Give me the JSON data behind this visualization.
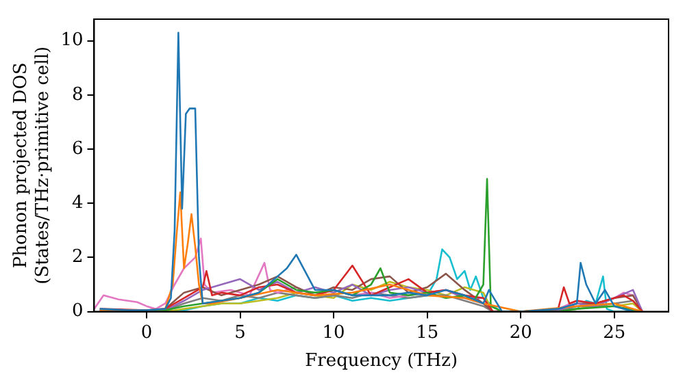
{
  "chart_data": {
    "type": "line",
    "xlabel": "Frequency (THz)",
    "ylabel": "Phonon projected DOS\n(States/THz·primitive cell)",
    "xlim": [
      -2.8,
      27.9
    ],
    "ylim": [
      0,
      10.8
    ],
    "xticks": [
      0,
      5,
      10,
      15,
      20,
      25
    ],
    "yticks": [
      0,
      2,
      4,
      6,
      8,
      10
    ],
    "legend": false,
    "marker": "none",
    "line_style": "solid",
    "series": [
      {
        "color": "#1f77b4",
        "x": [
          -2.5,
          -1,
          0,
          1,
          1.3,
          1.5,
          1.7,
          1.9,
          2.1,
          2.3,
          2.6,
          2.8,
          3.0,
          4,
          5,
          6,
          7,
          7.5,
          8,
          9,
          10,
          11,
          12,
          13,
          14,
          15,
          16,
          17,
          18,
          18.3,
          19,
          20,
          22,
          23,
          23.2,
          23.5,
          24,
          24.5,
          25,
          26
        ],
        "values": [
          0.1,
          0.05,
          0.05,
          0.1,
          0.5,
          3,
          10.3,
          3.8,
          7.3,
          7.5,
          7.5,
          2,
          0.3,
          0.4,
          0.5,
          0.7,
          1.3,
          1.6,
          2.1,
          0.8,
          0.8,
          0.6,
          0.6,
          0.6,
          0.7,
          0.6,
          0.8,
          0.6,
          0.3,
          0.8,
          0,
          0,
          0.1,
          0.3,
          1.8,
          1.0,
          0.3,
          0.8,
          0.2,
          0
        ]
      },
      {
        "color": "#ff7f0e",
        "x": [
          -2.5,
          0,
          1,
          1.4,
          1.6,
          1.8,
          2.0,
          2.2,
          2.4,
          2.6,
          2.8,
          3.0,
          3.5,
          5,
          7,
          9,
          11,
          13,
          15,
          17,
          18,
          20,
          23,
          25,
          26.5
        ],
        "values": [
          0.05,
          0.05,
          0.1,
          1.0,
          2.8,
          4.4,
          1.6,
          2.5,
          3.6,
          2.4,
          1.0,
          0.3,
          0.3,
          0.5,
          0.8,
          0.6,
          0.7,
          1.0,
          0.6,
          0.5,
          0.3,
          0,
          0.2,
          0.3,
          0
        ]
      },
      {
        "color": "#2ca02c",
        "x": [
          -2.5,
          0,
          1,
          2,
          3,
          4,
          5,
          6,
          7,
          8,
          9,
          10,
          11,
          12,
          12.5,
          13,
          14,
          15,
          16,
          17,
          17.5,
          18,
          18.2,
          18.4,
          19,
          22,
          23,
          25,
          26.5
        ],
        "values": [
          0,
          0,
          0.05,
          0.2,
          0.3,
          0.4,
          0.5,
          0.7,
          1.2,
          0.8,
          0.7,
          0.8,
          0.6,
          1.0,
          1.6,
          0.7,
          0.6,
          0.7,
          0.5,
          0.6,
          0.4,
          1.0,
          4.9,
          0.2,
          0,
          0,
          0.1,
          0.2,
          0
        ]
      },
      {
        "color": "#d62728",
        "x": [
          -2.5,
          0,
          1,
          2,
          2.5,
          3,
          3.2,
          3.5,
          4,
          5,
          6,
          7,
          8,
          9,
          10,
          11,
          12,
          13,
          14,
          15,
          16,
          17,
          18,
          18.5,
          20,
          22,
          22.3,
          22.6,
          23,
          24,
          25,
          25.5,
          26,
          26.5
        ],
        "values": [
          0.1,
          0.05,
          0.1,
          0.5,
          0.7,
          0.9,
          1.5,
          0.6,
          0.7,
          0.6,
          0.9,
          1.0,
          0.7,
          0.6,
          0.8,
          1.7,
          0.6,
          0.9,
          1.2,
          0.7,
          0.8,
          0.6,
          0.5,
          0,
          0,
          0.1,
          0.9,
          0.3,
          0.4,
          0.3,
          0.5,
          0.6,
          0.4,
          0
        ]
      },
      {
        "color": "#9467bd",
        "x": [
          -2.5,
          0,
          1,
          2,
          3,
          4,
          5,
          6,
          7,
          8,
          9,
          10,
          11,
          12,
          13,
          14,
          15,
          16,
          17,
          18,
          18.5,
          20,
          22,
          23,
          24,
          25,
          26,
          26.5
        ],
        "values": [
          0.05,
          0,
          0.05,
          0.4,
          0.8,
          1.0,
          1.2,
          0.8,
          1.1,
          0.7,
          0.9,
          0.7,
          1.0,
          0.6,
          0.8,
          0.9,
          0.7,
          0.8,
          0.5,
          0.5,
          0,
          0,
          0.05,
          0.3,
          0.2,
          0.5,
          0.8,
          0
        ]
      },
      {
        "color": "#8c564b",
        "x": [
          -2.5,
          0,
          1,
          2,
          3,
          4,
          5,
          6,
          7,
          8,
          9,
          10,
          11,
          12,
          13,
          14,
          15,
          16,
          17,
          18,
          18.5,
          20,
          22,
          23,
          24,
          25,
          26,
          26.5
        ],
        "values": [
          0.05,
          0,
          0.1,
          0.7,
          0.9,
          0.6,
          0.8,
          1.0,
          1.3,
          0.9,
          0.6,
          0.9,
          0.8,
          1.2,
          1.3,
          0.7,
          0.9,
          1.4,
          0.8,
          0.3,
          0,
          0,
          0.05,
          0.3,
          0.3,
          0.5,
          0.6,
          0
        ]
      },
      {
        "color": "#e377c2",
        "x": [
          -2.8,
          -2.3,
          -1.5,
          -0.5,
          0,
          0.5,
          1,
          1.5,
          2,
          2.6,
          2.9,
          3.1,
          3.5,
          4.5,
          5.5,
          6.3,
          6.6,
          7,
          8,
          9,
          10,
          11,
          12,
          13,
          14,
          15,
          16,
          17,
          18,
          18.5,
          20,
          22,
          23,
          24,
          25,
          25.5,
          26,
          26.5
        ],
        "values": [
          0.1,
          0.6,
          0.45,
          0.35,
          0.2,
          0.1,
          0.3,
          1.0,
          1.6,
          2.0,
          2.7,
          1.0,
          0.7,
          0.8,
          0.6,
          1.8,
          0.8,
          0.7,
          0.9,
          0.6,
          0.8,
          0.6,
          0.7,
          0.5,
          0.6,
          0.7,
          0.8,
          0.5,
          0.3,
          0,
          0,
          0.1,
          0.4,
          0.3,
          0.5,
          0.7,
          0.6,
          0
        ]
      },
      {
        "color": "#7f7f7f",
        "x": [
          -2.5,
          0,
          1,
          2,
          3,
          4,
          5,
          6,
          7,
          8,
          9,
          10,
          11,
          12,
          13,
          14,
          15,
          16,
          17,
          18,
          18.5,
          20,
          22,
          23,
          24,
          25,
          26,
          26.5
        ],
        "values": [
          0,
          0,
          0.05,
          0.3,
          0.5,
          0.4,
          0.6,
          0.5,
          0.7,
          0.6,
          0.5,
          0.6,
          0.5,
          0.7,
          0.6,
          0.5,
          0.6,
          0.6,
          0.4,
          0.2,
          0,
          0,
          0,
          0.2,
          0.2,
          0.3,
          0.4,
          0
        ]
      },
      {
        "color": "#bcbd22",
        "x": [
          -2.5,
          0,
          1,
          2,
          3,
          4,
          5,
          6,
          7,
          8,
          9,
          10,
          11,
          12,
          13,
          14,
          15,
          16,
          17,
          18,
          18.5,
          20,
          22,
          23,
          24,
          25,
          26,
          26.5
        ],
        "values": [
          0,
          0,
          0,
          0.1,
          0.2,
          0.3,
          0.3,
          0.4,
          0.5,
          0.7,
          0.6,
          0.5,
          1.0,
          0.8,
          1.1,
          0.9,
          0.8,
          0.6,
          0.9,
          0.7,
          0,
          0,
          0,
          0.1,
          0.2,
          0.2,
          0.3,
          0
        ]
      },
      {
        "color": "#17becf",
        "x": [
          -2.5,
          0,
          2,
          3,
          4,
          5,
          6,
          7,
          8,
          9,
          10,
          11,
          12,
          13,
          14,
          15,
          15.5,
          15.8,
          16.2,
          16.6,
          17,
          17.3,
          17.6,
          18,
          18.5,
          19,
          22,
          23,
          23.5,
          24,
          24.4,
          24.6,
          25,
          26.5
        ],
        "values": [
          0,
          0,
          0.05,
          0.2,
          0.3,
          0.3,
          0.5,
          0.4,
          0.6,
          0.5,
          0.6,
          0.4,
          0.5,
          0.4,
          0.5,
          0.6,
          1.2,
          2.3,
          2.0,
          1.2,
          1.5,
          0.8,
          1.3,
          0.5,
          0.2,
          0,
          0,
          0.1,
          0.4,
          0.3,
          1.3,
          0.1,
          0,
          0
        ]
      }
    ]
  }
}
